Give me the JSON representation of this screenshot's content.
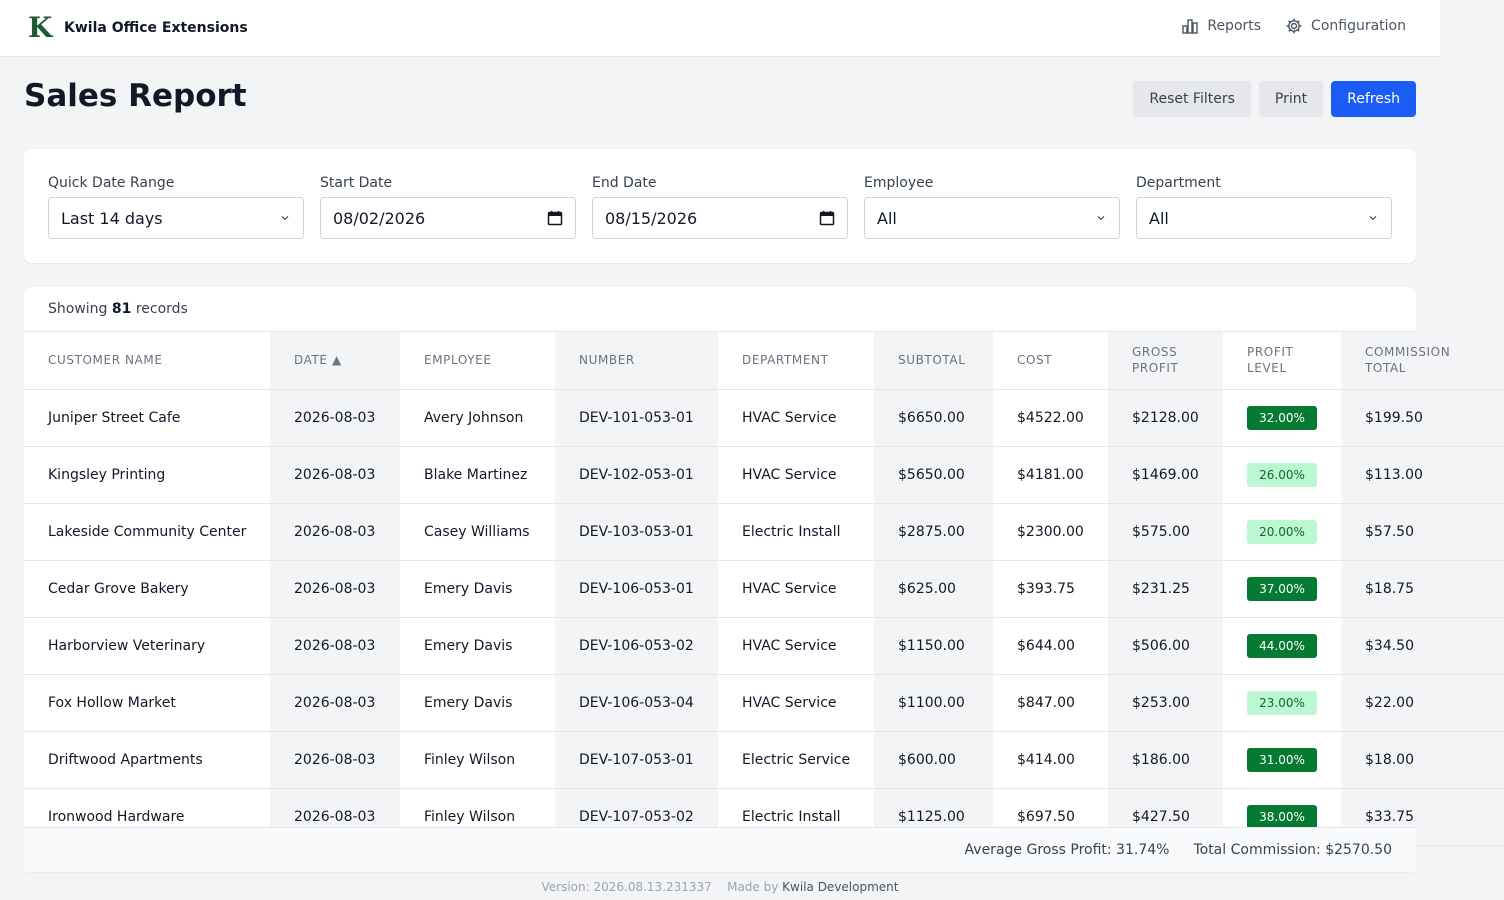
{
  "app": {
    "name": "Kwila Office Extensions",
    "logo_letter": "K"
  },
  "nav": {
    "reports": "Reports",
    "configuration": "Configuration"
  },
  "page": {
    "title": "Sales Report"
  },
  "actions": {
    "reset": "Reset Filters",
    "print": "Print",
    "refresh": "Refresh"
  },
  "filters": {
    "quick_range": {
      "label": "Quick Date Range",
      "value": "Last 14 days"
    },
    "start": {
      "label": "Start Date",
      "value": "08/02/2026"
    },
    "end": {
      "label": "End Date",
      "value": "08/15/2026"
    },
    "employee": {
      "label": "Employee",
      "value": "All"
    },
    "department": {
      "label": "Department",
      "value": "All"
    }
  },
  "records": {
    "prefix": "Showing",
    "count": "81",
    "suffix": "records"
  },
  "table": {
    "headers": [
      "CUSTOMER NAME",
      "DATE ▲",
      "EMPLOYEE",
      "NUMBER",
      "DEPARTMENT",
      "SUBTOTAL",
      "COST",
      "GROSS PROFIT",
      "PROFIT LEVEL",
      "COMMISSION TOTAL"
    ],
    "rows": [
      {
        "customer": "Juniper Street Cafe",
        "date": "2026-08-03",
        "employee": "Avery Johnson",
        "number": "DEV-101-053-01",
        "department": "HVAC Service",
        "subtotal": "$6650.00",
        "cost": "$4522.00",
        "gross": "$2128.00",
        "profit": "32.00%",
        "level": "high",
        "commission": "$199.50"
      },
      {
        "customer": "Kingsley Printing",
        "date": "2026-08-03",
        "employee": "Blake Martinez",
        "number": "DEV-102-053-01",
        "department": "HVAC Service",
        "subtotal": "$5650.00",
        "cost": "$4181.00",
        "gross": "$1469.00",
        "profit": "26.00%",
        "level": "low",
        "commission": "$113.00"
      },
      {
        "customer": "Lakeside Community Center",
        "date": "2026-08-03",
        "employee": "Casey Williams",
        "number": "DEV-103-053-01",
        "department": "Electric Install",
        "subtotal": "$2875.00",
        "cost": "$2300.00",
        "gross": "$575.00",
        "profit": "20.00%",
        "level": "low",
        "commission": "$57.50"
      },
      {
        "customer": "Cedar Grove Bakery",
        "date": "2026-08-03",
        "employee": "Emery Davis",
        "number": "DEV-106-053-01",
        "department": "HVAC Service",
        "subtotal": "$625.00",
        "cost": "$393.75",
        "gross": "$231.25",
        "profit": "37.00%",
        "level": "high",
        "commission": "$18.75"
      },
      {
        "customer": "Harborview Veterinary",
        "date": "2026-08-03",
        "employee": "Emery Davis",
        "number": "DEV-106-053-02",
        "department": "HVAC Service",
        "subtotal": "$1150.00",
        "cost": "$644.00",
        "gross": "$506.00",
        "profit": "44.00%",
        "level": "high",
        "commission": "$34.50"
      },
      {
        "customer": "Fox Hollow Market",
        "date": "2026-08-03",
        "employee": "Emery Davis",
        "number": "DEV-106-053-04",
        "department": "HVAC Service",
        "subtotal": "$1100.00",
        "cost": "$847.00",
        "gross": "$253.00",
        "profit": "23.00%",
        "level": "low",
        "commission": "$22.00"
      },
      {
        "customer": "Driftwood Apartments",
        "date": "2026-08-03",
        "employee": "Finley Wilson",
        "number": "DEV-107-053-01",
        "department": "Electric Service",
        "subtotal": "$600.00",
        "cost": "$414.00",
        "gross": "$186.00",
        "profit": "31.00%",
        "level": "high",
        "commission": "$18.00"
      },
      {
        "customer": "Ironwood Hardware",
        "date": "2026-08-03",
        "employee": "Finley Wilson",
        "number": "DEV-107-053-02",
        "department": "Electric Install",
        "subtotal": "$1125.00",
        "cost": "$697.50",
        "gross": "$427.50",
        "profit": "38.00%",
        "level": "high",
        "commission": "$33.75"
      }
    ]
  },
  "summary": {
    "avg_profit": "Average Gross Profit: 31.74%",
    "total_commission": "Total Commission: $2570.50"
  },
  "footer": {
    "version": "Version: 2026.08.13.231337",
    "made_by": "Made by",
    "company": "Kwila Development"
  },
  "colors": {
    "accent": "#1a5cf5",
    "badge_high": "#047a33",
    "badge_low": "#bbf7d0",
    "logo": "#1f5a36"
  },
  "icons": {
    "reports": "bar-chart-icon",
    "configuration": "gear-icon",
    "select": "chevron-down-icon",
    "date": "calendar-icon"
  }
}
